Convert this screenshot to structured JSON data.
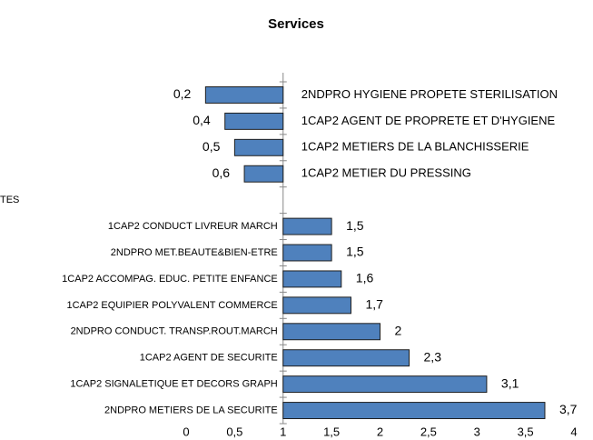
{
  "chart_data": {
    "type": "bar",
    "orientation": "horizontal",
    "title": "Services",
    "categories": [
      "2NDPRO HYGIENE PROPETE STERILISATION",
      "1CAP2 AGENT DE PROPRETE ET D'HYGIENE",
      "1CAP2 METIERS DE LA BLANCHISSERIE",
      "1CAP2 METIER DU PRESSING",
      "TES",
      "1CAP2  CONDUCT LIVREUR MARCH",
      "2NDPRO MET.BEAUTE&BIEN-ETRE",
      "1CAP2  ACCOMPAG. EDUC. PETITE ENFANCE",
      "1CAP2 EQUIPIER POLYVALENT COMMERCE",
      "2NDPRO CONDUCT. TRANSP.ROUT.MARCH",
      "1CAP2  AGENT DE SECURITE",
      "1CAP2  SIGNALETIQUE ET DECORS GRAPH",
      "2NDPRO METIERS DE LA SECURITE"
    ],
    "values": [
      0.2,
      0.4,
      0.5,
      0.6,
      null,
      1.5,
      1.5,
      1.6,
      1.7,
      2,
      2.3,
      3.1,
      3.7
    ],
    "value_labels": [
      "0,2",
      "0,4",
      "0,5",
      "0,6",
      null,
      "1,5",
      "1,5",
      "1,6",
      "1,7",
      "2",
      "2,3",
      "3,1",
      "3,7"
    ],
    "color": "#4f81bd",
    "base": 1,
    "xlim": [
      0,
      4
    ],
    "xticks": [
      0,
      {
        "value": 0.5,
        "label": "0,5"
      },
      1,
      {
        "value": 1.5,
        "label": "1,5"
      },
      2,
      {
        "value": 2.5,
        "label": "2,5"
      },
      3,
      {
        "value": 3.5,
        "label": "3,5"
      },
      4
    ]
  }
}
